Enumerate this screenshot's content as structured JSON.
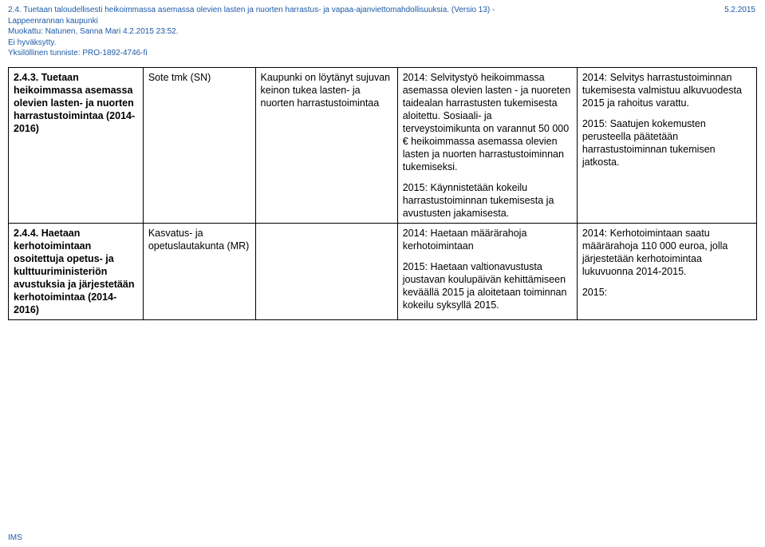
{
  "header": {
    "title_line": "2.4. Tuetaan taloudellisesti heikoimmassa asemassa olevien lasten ja nuorten harrastus- ja vapaa-ajanviettomahdollisuuksia. (Versio 13) -",
    "org": "Lappeenrannan kaupunki",
    "modified": "Muokattu: Natunen, Sanna Mari 4.2.2015 23:52.",
    "status": "Ei hyväksytty.",
    "id": "Yksilöllinen tunniste: PRO-1892-4746-fi",
    "date": "5.2.2015"
  },
  "columns_width": [
    "18%",
    "15%",
    "19%",
    "24%",
    "24%"
  ],
  "rows": [
    {
      "c1": "2.4.3. Tuetaan heikoimmassa asemassa olevien lasten- ja nuorten harrastustoimintaa (2014-2016)",
      "c2": "Sote tmk (SN)",
      "c3": "Kaupunki on löytänyt sujuvan keinon tukea lasten- ja nuorten harrastustoimintaa",
      "c4_p1": "2014: Selvitystyö heikoimmassa asemassa olevien lasten - ja nuoreten taidealan harrastusten tukemisesta aloitettu. Sosiaali- ja terveystoimikunta on varannut 50 000 € heikoimmassa asemassa olevien lasten ja nuorten harrastustoiminnan tukemiseksi.",
      "c4_p2": "2015: Käynnistetään kokeilu harrastustoiminnan tukemisesta ja avustusten jakamisesta.",
      "c5_p1": "2014: Selvitys harrastustoiminnan tukemisesta valmistuu alkuvuodesta 2015 ja rahoitus varattu.",
      "c5_p2": "2015: Saatujen kokemusten perusteella päätetään harrastustoiminnan tukemisen jatkosta."
    },
    {
      "c1": "2.4.4. Haetaan kerhotoimintaan osoitettuja opetus- ja kulttuuriministeriön avustuksia ja järjestetään kerhotoimintaa (2014-2016)",
      "c2": "Kasvatus- ja opetuslautakunta (MR)",
      "c3": "",
      "c4_p1": "2014: Haetaan määrärahoja kerhotoimintaan",
      "c4_p2": "2015: Haetaan valtionavustusta joustavan koulupäivän kehittämiseen keväällä 2015 ja aloitetaan toiminnan kokeilu syksyllä 2015.",
      "c5_p1": "2014: Kerhotoimintaan saatu määrärahoja 110 000 euroa, jolla järjestetään kerhotoimintaa lukuvuonna 2014-2015.",
      "c5_p2": "2015:"
    }
  ],
  "footer": "IMS"
}
